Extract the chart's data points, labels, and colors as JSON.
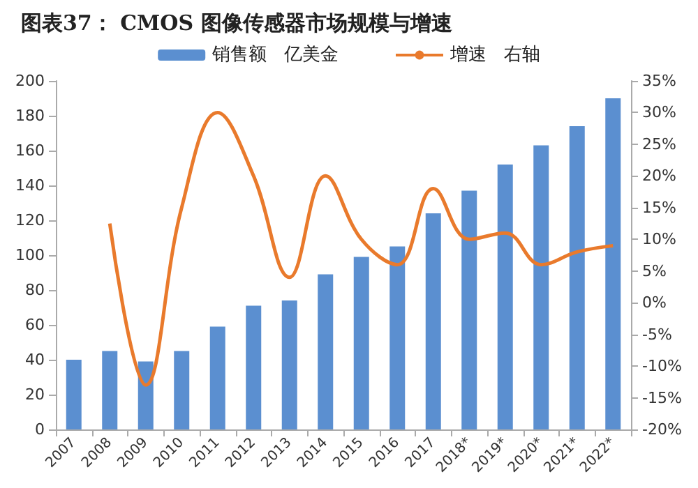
{
  "chart_data": {
    "type": "bar",
    "title": "图表37： CMOS 图像传感器市场规模与增速",
    "categories": [
      "2007",
      "2008",
      "2009",
      "2010",
      "2011",
      "2012",
      "2013",
      "2014",
      "2015",
      "2016",
      "2017",
      "2018*",
      "2019*",
      "2020*",
      "2021*",
      "2022*"
    ],
    "series": [
      {
        "name": "销售额   亿美金",
        "color": "#5b8fd0",
        "values": [
          40,
          45,
          39,
          45,
          59,
          71,
          74,
          89,
          99,
          105,
          124,
          137,
          152,
          163,
          174,
          190
        ]
      },
      {
        "name": "增速   右轴",
        "type": "line",
        "axis": "y2",
        "color": "#e97a2c",
        "values": [
          null,
          12.5,
          -13,
          15,
          30,
          20,
          4,
          20,
          10,
          6,
          18,
          10,
          11,
          6,
          8,
          9
        ]
      }
    ],
    "ylim": [
      0,
      200
    ],
    "yticks": [
      0,
      20,
      40,
      60,
      80,
      100,
      120,
      140,
      160,
      180,
      200
    ],
    "y2lim": [
      -20,
      35
    ],
    "y2ticks": [
      {
        "value": -20,
        "label": "-20%"
      },
      {
        "value": -15,
        "label": "-15%"
      },
      {
        "value": -10,
        "label": "-10%"
      },
      {
        "value": -5,
        "label": "-5%"
      },
      {
        "value": 0,
        "label": "0%"
      },
      {
        "value": 5,
        "label": "5%"
      },
      {
        "value": 10,
        "label": "10%"
      },
      {
        "value": 15,
        "label": "15%"
      },
      {
        "value": 20,
        "label": "20%"
      },
      {
        "value": 25,
        "label": "25%"
      },
      {
        "value": 30,
        "label": "30%"
      },
      {
        "value": 35,
        "label": "35%"
      }
    ],
    "grid": false,
    "legend": "top",
    "marker": "none",
    "line_style": "solid"
  }
}
